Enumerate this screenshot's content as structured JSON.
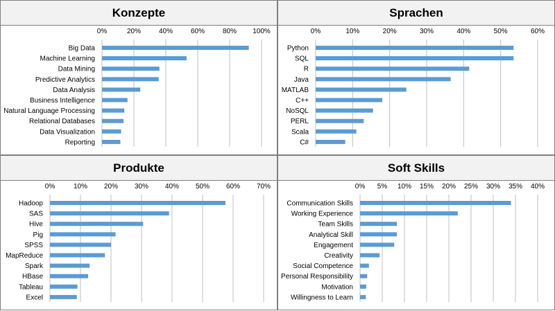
{
  "colors": {
    "bar": "#5b9bd5",
    "grid": "#bfbfbf",
    "title_bg": "#f2f2f2",
    "border": "#7f7f7f"
  },
  "chart_data": [
    {
      "type": "bar",
      "orientation": "horizontal",
      "title": "Konzepte",
      "categories": [
        "Big Data",
        "Machine Learning",
        "Data Mining",
        "Predictive Analytics",
        "Data Analysis",
        "Business Intelligence",
        "Natural Language Processing",
        "Relational Databases",
        "Data Visualization",
        "Reporting"
      ],
      "values": [
        0.92,
        0.53,
        0.36,
        0.355,
        0.24,
        0.16,
        0.14,
        0.135,
        0.12,
        0.115
      ],
      "ticks": [
        "0%",
        "20%",
        "40%",
        "60%",
        "80%",
        "100%"
      ],
      "xlim": [
        0,
        1.0
      ],
      "grid": true
    },
    {
      "type": "bar",
      "orientation": "horizontal",
      "title": "Sprachen",
      "categories": [
        "Python",
        "SQL",
        "R",
        "Java",
        "MATLAB",
        "C++",
        "NoSQL",
        "PERL",
        "Scala",
        "C#"
      ],
      "values": [
        0.535,
        0.535,
        0.415,
        0.365,
        0.245,
        0.18,
        0.155,
        0.13,
        0.11,
        0.08
      ],
      "ticks": [
        "0%",
        "10%",
        "20%",
        "30%",
        "40%",
        "50%",
        "60%"
      ],
      "xlim": [
        0,
        0.6
      ],
      "grid": true
    },
    {
      "type": "bar",
      "orientation": "horizontal",
      "title": "Produkte",
      "categories": [
        "Hadoop",
        "SAS",
        "Hive",
        "Pig",
        "SPSS",
        "MapReduce",
        "Spark",
        "HBase",
        "Tableau",
        "Excel"
      ],
      "values": [
        0.575,
        0.39,
        0.305,
        0.215,
        0.2,
        0.18,
        0.13,
        0.125,
        0.09,
        0.088
      ],
      "ticks": [
        "0%",
        "10%",
        "20%",
        "30%",
        "40%",
        "50%",
        "60%",
        "70%"
      ],
      "xlim": [
        0,
        0.7
      ],
      "grid": true
    },
    {
      "type": "bar",
      "orientation": "horizontal",
      "title": "Soft Skills",
      "categories": [
        "Communication Skills",
        "Working Experience",
        "Team Skills",
        "Analytical Skill",
        "Engagement",
        "Creativity",
        "Social Competence",
        "Personal Responsibility",
        "Motivation",
        "Willingness to Learn"
      ],
      "values": [
        0.34,
        0.22,
        0.083,
        0.083,
        0.077,
        0.044,
        0.02,
        0.016,
        0.014,
        0.013
      ],
      "ticks": [
        "0%",
        "5%",
        "10%",
        "15%",
        "20%",
        "25%",
        "30%",
        "35%",
        "40%"
      ],
      "xlim": [
        0,
        0.4
      ],
      "grid": true
    }
  ]
}
